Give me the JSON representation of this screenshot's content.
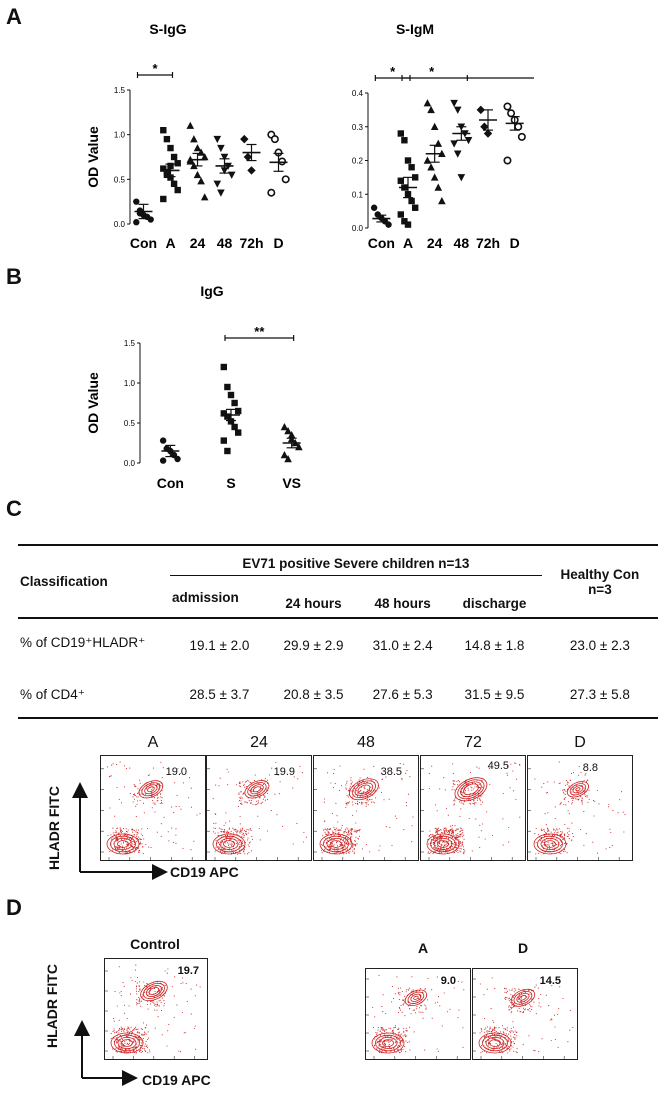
{
  "panels": {
    "A": "A",
    "B": "B",
    "C": "C",
    "D": "D"
  },
  "chart_data": [
    {
      "type": "scatter",
      "title": "S-IgG",
      "ylabel": "OD Value",
      "ylim": [
        0,
        1.5
      ],
      "yticks": [
        "0.0",
        "0.5",
        "1.0",
        "1.5"
      ],
      "categories": [
        "Con",
        "A",
        "24",
        "48",
        "72h",
        "D"
      ],
      "markers": [
        "circle",
        "square",
        "triangle",
        "invtriangle",
        "diamond",
        "open-circle"
      ],
      "means": [
        0.14,
        0.6,
        0.72,
        0.65,
        0.8,
        0.69
      ],
      "sems": [
        0.08,
        0.07,
        0.07,
        0.08,
        0.09,
        0.1
      ],
      "points": [
        [
          0.25,
          0.15,
          0.1,
          0.08,
          0.05,
          0.02,
          0.12
        ],
        [
          1.05,
          0.95,
          0.85,
          0.75,
          0.68,
          0.62,
          0.58,
          0.52,
          0.45,
          0.38,
          0.28,
          0.55,
          0.65
        ],
        [
          1.1,
          0.95,
          0.85,
          0.8,
          0.75,
          0.7,
          0.65,
          0.55,
          0.48,
          0.3,
          0.72
        ],
        [
          0.95,
          0.85,
          0.75,
          0.65,
          0.55,
          0.45,
          0.35,
          0.6
        ],
        [
          0.95,
          0.75,
          0.6
        ],
        [
          1.0,
          0.95,
          0.8,
          0.7,
          0.5,
          0.35
        ]
      ],
      "significance": [
        {
          "from": 0,
          "to": 1,
          "label": "*"
        }
      ]
    },
    {
      "type": "scatter",
      "title": "S-IgM",
      "ylabel": "",
      "ylim": [
        0,
        0.4
      ],
      "yticks": [
        "0.0",
        "0.1",
        "0.2",
        "0.3",
        "0.4"
      ],
      "categories": [
        "Con",
        "A",
        "24",
        "48",
        "72h",
        "D"
      ],
      "markers": [
        "circle",
        "square",
        "triangle",
        "invtriangle",
        "diamond",
        "open-circle"
      ],
      "means": [
        0.028,
        0.12,
        0.22,
        0.28,
        0.32,
        0.31
      ],
      "sems": [
        0.01,
        0.03,
        0.025,
        0.02,
        0.03,
        0.02
      ],
      "points": [
        [
          0.06,
          0.04,
          0.03,
          0.02,
          0.01
        ],
        [
          0.28,
          0.26,
          0.2,
          0.18,
          0.15,
          0.14,
          0.12,
          0.1,
          0.08,
          0.06,
          0.04,
          0.02,
          0.01
        ],
        [
          0.37,
          0.35,
          0.3,
          0.25,
          0.22,
          0.2,
          0.18,
          0.15,
          0.12,
          0.08
        ],
        [
          0.37,
          0.35,
          0.3,
          0.28,
          0.26,
          0.25,
          0.22,
          0.15
        ],
        [
          0.35,
          0.3,
          0.28
        ],
        [
          0.36,
          0.34,
          0.32,
          0.3,
          0.27,
          0.2
        ]
      ],
      "significance": [
        {
          "from": 0,
          "to": 1,
          "label": "*"
        },
        {
          "from": 1,
          "to": 3,
          "label": "*"
        }
      ]
    },
    {
      "type": "scatter",
      "title": "IgG",
      "ylabel": "OD Value",
      "ylim": [
        0,
        1.5
      ],
      "yticks": [
        "0.0",
        "0.5",
        "1.0",
        "1.5"
      ],
      "categories": [
        "Con",
        "S",
        "VS"
      ],
      "markers": [
        "circle",
        "square",
        "triangle"
      ],
      "means": [
        0.15,
        0.6,
        0.25
      ],
      "sems": [
        0.07,
        0.07,
        0.06
      ],
      "points": [
        [
          0.28,
          0.18,
          0.15,
          0.1,
          0.05,
          0.03
        ],
        [
          1.2,
          0.95,
          0.85,
          0.75,
          0.65,
          0.62,
          0.58,
          0.52,
          0.45,
          0.38,
          0.28,
          0.15
        ],
        [
          0.45,
          0.4,
          0.3,
          0.25,
          0.2,
          0.1,
          0.05,
          0.35
        ]
      ],
      "significance": [
        {
          "from": 1,
          "to": 2,
          "label": "**"
        }
      ]
    }
  ],
  "table": {
    "classification": "Classification",
    "group_header": "EV71 positive Severe children n=13",
    "healthy_header_l1": "Healthy Con",
    "healthy_header_l2": "n=3",
    "columns": [
      "admission",
      "24 hours",
      "48 hours",
      "discharge"
    ],
    "rows": [
      {
        "label": "% of CD19⁺HLADR⁺",
        "values": [
          "19.1 ± 2.0",
          "29.9 ± 2.9",
          "31.0 ± 2.4",
          "14.8 ± 1.8",
          "23.0 ± 2.3"
        ]
      },
      {
        "label": "% of CD4⁺",
        "values": [
          "28.5 ± 3.7",
          "20.8 ± 3.5",
          "27.6 ± 5.3",
          "31.5 ± 9.5",
          "27.3 ± 5.8"
        ]
      }
    ]
  },
  "flow_c": {
    "labels": [
      "A",
      "24",
      "48",
      "72",
      "D"
    ],
    "values": [
      "19.0",
      "19.9",
      "38.5",
      "49.5",
      "8.8"
    ],
    "y_axis": "HLADR FITC",
    "x_axis": "CD19 APC"
  },
  "flow_d": {
    "labels": [
      "Control",
      "A",
      "D"
    ],
    "values": [
      "19.7",
      "9.0",
      "14.5"
    ],
    "y_axis": "HLADR FITC",
    "x_axis": "CD19 APC"
  },
  "colors": {
    "flow": "#cc2020",
    "ink": "#111111"
  }
}
